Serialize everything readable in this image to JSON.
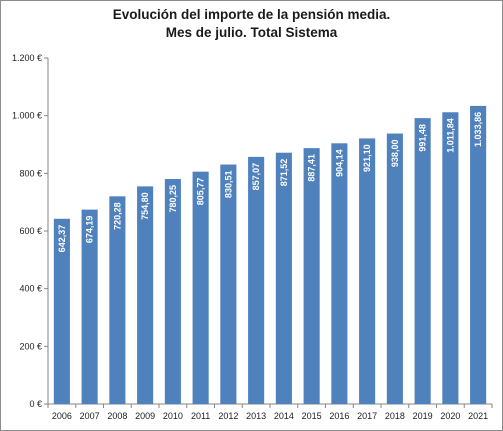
{
  "chart_data": {
    "type": "bar",
    "title_line1": "Evolución del importe de la pensión media.",
    "title_line2": "Mes de julio. Total Sistema",
    "xlabel": "",
    "ylabel": "",
    "ylim": [
      0,
      1200
    ],
    "ytick_values": [
      0,
      200,
      400,
      600,
      800,
      1000,
      1200
    ],
    "ytick_labels": [
      "0 €",
      "200 €",
      "400 €",
      "600 €",
      "800 €",
      "1.000 €",
      "1.200 €"
    ],
    "categories": [
      "2006",
      "2007",
      "2008",
      "2009",
      "2010",
      "2011",
      "2012",
      "2013",
      "2014",
      "2015",
      "2016",
      "2017",
      "2018",
      "2019",
      "2020",
      "2021"
    ],
    "values": [
      642.37,
      674.19,
      720.28,
      754.8,
      780.25,
      805.77,
      830.51,
      857.07,
      871.52,
      887.41,
      904.14,
      921.1,
      938.0,
      991.48,
      1011.84,
      1033.86
    ],
    "value_labels": [
      "642,37",
      "674,19",
      "720,28",
      "754,80",
      "780,25",
      "805,77",
      "830,51",
      "857,07",
      "871,52",
      "887,41",
      "904,14",
      "921,10",
      "938,00",
      "991,48",
      "1.011,84",
      "1.033,86"
    ],
    "colors": {
      "bar": "#4f81bd",
      "label": "#ffffff",
      "axis": "#868686"
    },
    "grid": false,
    "legend": "none"
  }
}
